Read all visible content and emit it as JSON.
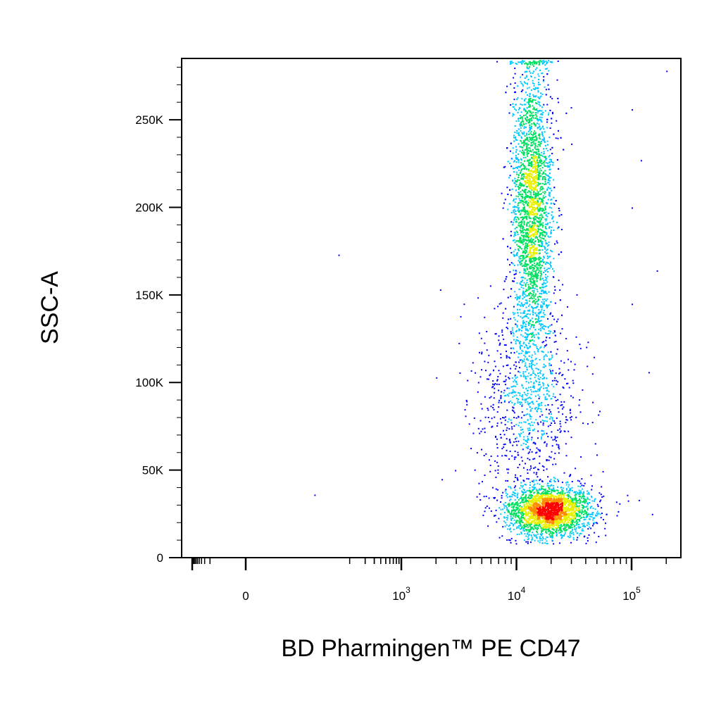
{
  "chart_data": {
    "type": "scatter",
    "plot_style": "flow-cytometry density dot plot (pseudocolor: blue low → green → yellow → red high)",
    "xlabel": "BD Pharmingen™ PE CD47",
    "ylabel": "SSC-A",
    "x_scale": "biexponential (linear near 0, log above ~10^2.5)",
    "y_scale": "linear",
    "ylim": [
      0,
      285000
    ],
    "x_ticks": [
      {
        "value": 0,
        "base": "0",
        "exp": ""
      },
      {
        "value": 1000,
        "base": "10",
        "exp": "3"
      },
      {
        "value": 10000,
        "base": "10",
        "exp": "4"
      },
      {
        "value": 100000,
        "base": "10",
        "exp": "5"
      }
    ],
    "y_ticks": [
      {
        "value": 0,
        "label": "0"
      },
      {
        "value": 50000,
        "label": "50K"
      },
      {
        "value": 100000,
        "label": "100K"
      },
      {
        "value": 150000,
        "label": "150K"
      },
      {
        "value": 200000,
        "label": "200K"
      },
      {
        "value": 250000,
        "label": "250K"
      }
    ],
    "grid": false,
    "populations": [
      {
        "x_center": 19000,
        "y_center": 27000,
        "x_spread_decades": 0.18,
        "y_sd": 7000,
        "count": 2600,
        "density": "high"
      },
      {
        "x_center": 13500,
        "y_center": 200000,
        "x_spread_decades": 0.09,
        "y_sd": 45000,
        "count": 3800,
        "density": "medium"
      },
      {
        "x_center": 12000,
        "y_center": 90000,
        "x_spread_decades": 0.22,
        "y_sd": 30000,
        "count": 900,
        "density": "low"
      }
    ],
    "outlier_points": [
      {
        "x": 60,
        "y": 173000
      },
      {
        "x": 20,
        "y": 36000
      },
      {
        "x": 2000,
        "y": 103000
      },
      {
        "x": 140000,
        "y": 106000
      },
      {
        "x": 165000,
        "y": 164000
      },
      {
        "x": 100000,
        "y": 256000
      },
      {
        "x": 200000,
        "y": 278000
      },
      {
        "x": 115000,
        "y": 33000
      },
      {
        "x": 150000,
        "y": 25000
      },
      {
        "x": 120000,
        "y": 227000
      },
      {
        "x": 100000,
        "y": 145000
      },
      {
        "x": 100000,
        "y": 200000
      }
    ],
    "colors": {
      "low": "#0000ff",
      "mid_low": "#00c8ff",
      "mid": "#00e060",
      "mid_high": "#e8f000",
      "high": "#ff0000"
    }
  }
}
